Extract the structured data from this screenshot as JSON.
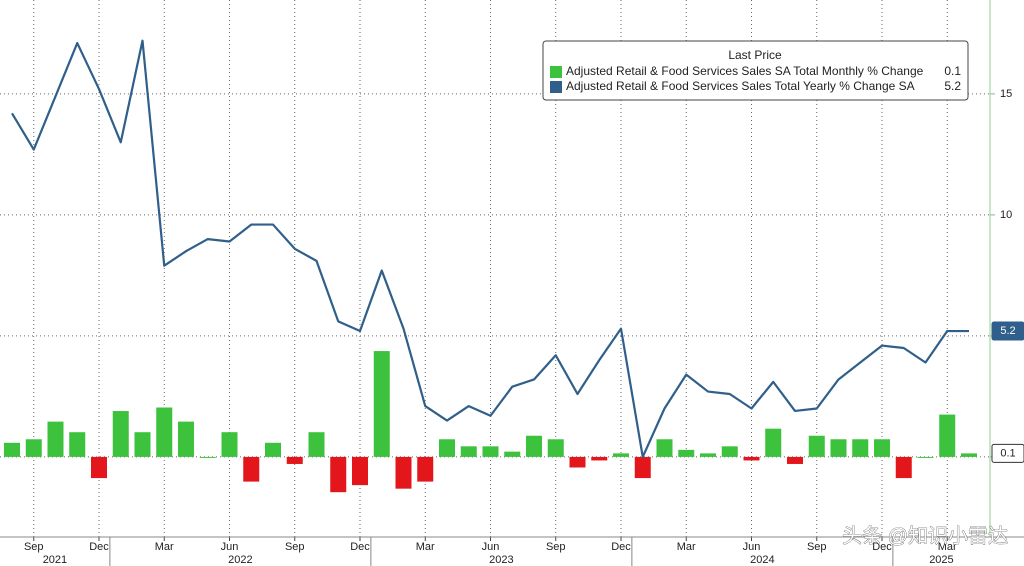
{
  "chart_data": {
    "type": "bar_line",
    "categories": [
      null,
      "Sep",
      null,
      null,
      "Dec",
      null,
      null,
      "Mar",
      null,
      null,
      "Jun",
      null,
      null,
      "Sep",
      null,
      null,
      "Dec",
      null,
      null,
      "Mar",
      null,
      null,
      "Jun",
      null,
      null,
      "Sep",
      null,
      null,
      "Dec",
      null,
      null,
      "Mar",
      null,
      null,
      "Jun",
      null,
      null,
      "Sep",
      null,
      null,
      "Dec",
      null,
      null,
      "Mar",
      null
    ],
    "years": [
      "2021",
      "2022",
      "2023",
      "2024",
      "2025"
    ],
    "legend_title": "Last Price",
    "series": [
      {
        "name": "Adjusted Retail & Food Services Sales SA Total Monthly % Change",
        "type": "bar",
        "axis": "y2",
        "color": "#3cc23c",
        "negative_color": "#e3161b",
        "last_value": 0.1,
        "values": [
          0.4,
          0.5,
          1.0,
          0.7,
          -0.6,
          1.3,
          0.7,
          1.4,
          1.0,
          0.0,
          0.7,
          -0.7,
          0.4,
          -0.2,
          0.7,
          -1.0,
          -0.8,
          3.0,
          -0.9,
          -0.7,
          0.5,
          0.3,
          0.3,
          0.15,
          0.6,
          0.5,
          -0.3,
          -0.1,
          0.1,
          -0.6,
          0.5,
          0.2,
          0.1,
          0.3,
          -0.1,
          0.8,
          -0.2,
          0.6,
          0.5,
          0.5,
          0.5,
          -0.6,
          0.0,
          1.2,
          0.1
        ]
      },
      {
        "name": "Adjusted Retail & Food Services Sales Total Yearly % Change SA",
        "type": "line",
        "color": "#2f5f8a",
        "last_value": 5.2,
        "values": [
          14.2,
          12.7,
          14.9,
          17.1,
          15.2,
          13.0,
          17.2,
          7.9,
          8.5,
          9.0,
          8.9,
          9.6,
          9.6,
          8.6,
          8.1,
          5.6,
          5.2,
          7.7,
          5.3,
          2.1,
          1.5,
          2.1,
          1.7,
          2.9,
          3.2,
          4.2,
          2.6,
          4.0,
          5.3,
          0.0,
          2.0,
          3.4,
          2.7,
          2.6,
          2.0,
          3.1,
          1.9,
          2.0,
          3.2,
          3.9,
          4.6,
          4.5,
          3.9,
          5.2,
          5.2
        ]
      }
    ],
    "ylim": [
      -3.31,
      18.88
    ],
    "yticks": [
      0,
      5,
      10,
      15
    ],
    "y2lim": [
      -2.27,
      12.95
    ],
    "grid": true,
    "watermark": "头条 @知识小雷达"
  }
}
